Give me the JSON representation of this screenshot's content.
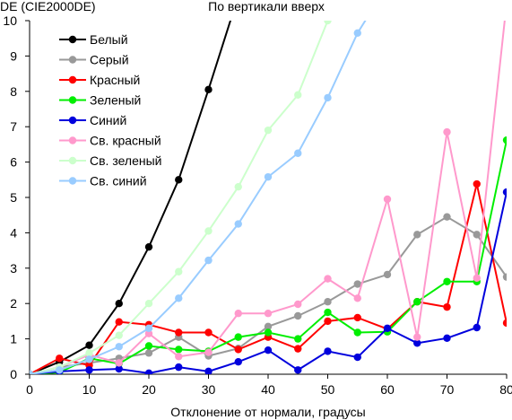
{
  "chart_data": {
    "type": "line",
    "title": "По вертикали вверх",
    "ylabel": "DE (CIE2000DE)",
    "xlabel": "Отклонение от нормали, градусы",
    "xlim": [
      0,
      80
    ],
    "ylim": [
      0,
      10
    ],
    "xticks": [
      0,
      10,
      20,
      30,
      40,
      50,
      60,
      70,
      80
    ],
    "yticks": [
      0,
      1,
      2,
      3,
      4,
      5,
      6,
      7,
      8,
      9,
      10
    ],
    "grid": false,
    "legend_position": "top-left",
    "x": [
      0,
      5,
      10,
      15,
      20,
      25,
      30,
      35,
      40,
      45,
      50,
      55,
      60,
      65,
      70,
      75,
      80
    ],
    "series": [
      {
        "name": "Белый",
        "color": "#000000",
        "values": [
          0,
          0.35,
          0.82,
          2.0,
          3.6,
          5.5,
          8.05,
          10.7,
          null,
          null,
          null,
          null,
          null,
          null,
          null,
          null,
          null
        ]
      },
      {
        "name": "Серый",
        "color": "#999999",
        "values": [
          0,
          0.2,
          0.32,
          0.45,
          0.6,
          1.05,
          0.52,
          0.73,
          1.35,
          1.65,
          2.05,
          2.55,
          2.82,
          3.95,
          4.45,
          3.95,
          2.75
        ]
      },
      {
        "name": "Красный",
        "color": "#ff0000",
        "values": [
          0,
          0.45,
          0.25,
          1.48,
          1.4,
          1.18,
          1.18,
          0.7,
          1.05,
          0.72,
          1.5,
          1.6,
          1.28,
          2.05,
          1.9,
          5.38,
          1.45
        ]
      },
      {
        "name": "Зеленый",
        "color": "#00ee00",
        "values": [
          0,
          0.05,
          0.45,
          0.3,
          0.8,
          0.7,
          0.65,
          1.05,
          1.18,
          1.0,
          1.75,
          1.18,
          1.2,
          2.05,
          2.62,
          2.62,
          6.62
        ]
      },
      {
        "name": "Синий",
        "color": "#0000dd",
        "values": [
          0,
          0.08,
          0.12,
          0.15,
          0.03,
          0.2,
          0.08,
          0.35,
          0.68,
          0.12,
          0.65,
          0.48,
          1.3,
          0.88,
          1.02,
          1.32,
          5.15
        ]
      },
      {
        "name": "Св. красный",
        "color": "#ff99cc",
        "values": [
          0,
          0.2,
          0.55,
          0.32,
          1.15,
          0.5,
          0.62,
          1.72,
          1.72,
          1.98,
          2.7,
          2.15,
          4.95,
          1.05,
          6.85,
          2.72,
          10.5
        ]
      },
      {
        "name": "Св. зеленый",
        "color": "#ccffcc",
        "values": [
          0,
          0.2,
          0.6,
          1.1,
          2.0,
          2.9,
          4.05,
          5.3,
          6.9,
          7.9,
          10.0,
          10.8,
          null,
          null,
          null,
          null,
          null
        ]
      },
      {
        "name": "Св. синий",
        "color": "#99ccff",
        "values": [
          0,
          0.12,
          0.42,
          0.78,
          1.3,
          2.15,
          3.22,
          4.25,
          5.58,
          6.25,
          7.82,
          9.65,
          11.0,
          null,
          null,
          null,
          null
        ]
      }
    ]
  }
}
